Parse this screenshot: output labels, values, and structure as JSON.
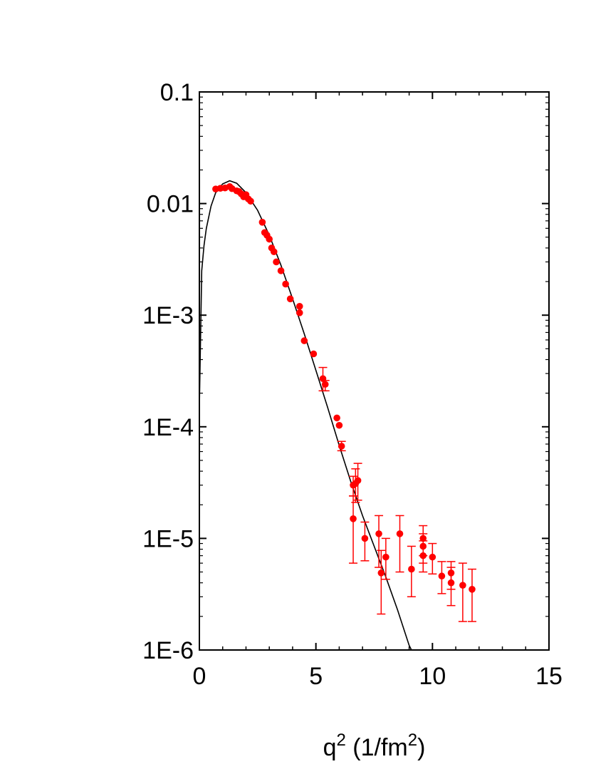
{
  "chart_data": {
    "type": "scatter",
    "title": "",
    "xlabel": {
      "base": "q",
      "sup": "2",
      "unit_open": " (1/fm",
      "unit_sup": "2",
      "unit_close": ")"
    },
    "ylabel": "",
    "xlim": [
      0,
      15
    ],
    "ylim": [
      1e-06,
      0.1
    ],
    "yscale": "log",
    "grid": false,
    "legend": "none",
    "x_ticks": [
      {
        "value": 0,
        "label": "0"
      },
      {
        "value": 5,
        "label": "5"
      },
      {
        "value": 10,
        "label": "10"
      },
      {
        "value": 15,
        "label": "15"
      }
    ],
    "y_ticks": [
      {
        "value": 1e-06,
        "label": "1E-6"
      },
      {
        "value": 1e-05,
        "label": "1E-5"
      },
      {
        "value": 0.0001,
        "label": "1E-4"
      },
      {
        "value": 0.001,
        "label": "1E-3"
      },
      {
        "value": 0.01,
        "label": "0.01"
      },
      {
        "value": 0.1,
        "label": "0.1"
      }
    ],
    "colors": {
      "data": "#ff0000",
      "curve": "#000000",
      "axis": "#000000"
    },
    "series": [
      {
        "kind": "points",
        "points": [
          {
            "x": 0.7,
            "y": 0.0135
          },
          {
            "x": 0.9,
            "y": 0.0137
          },
          {
            "x": 1.1,
            "y": 0.0138
          },
          {
            "x": 1.3,
            "y": 0.0142
          },
          {
            "x": 1.4,
            "y": 0.0136
          },
          {
            "x": 1.6,
            "y": 0.013
          },
          {
            "x": 1.7,
            "y": 0.0128
          },
          {
            "x": 1.8,
            "y": 0.0122
          },
          {
            "x": 1.9,
            "y": 0.0115
          },
          {
            "x": 2.0,
            "y": 0.012
          },
          {
            "x": 2.1,
            "y": 0.011
          },
          {
            "x": 2.2,
            "y": 0.0105
          },
          {
            "x": 2.7,
            "y": 0.0068
          },
          {
            "x": 2.8,
            "y": 0.0055
          },
          {
            "x": 2.9,
            "y": 0.0052
          },
          {
            "x": 3.0,
            "y": 0.0048
          },
          {
            "x": 3.1,
            "y": 0.004
          },
          {
            "x": 3.2,
            "y": 0.0037
          },
          {
            "x": 3.3,
            "y": 0.003
          },
          {
            "x": 3.5,
            "y": 0.0025
          },
          {
            "x": 3.7,
            "y": 0.0019
          },
          {
            "x": 3.9,
            "y": 0.0014
          },
          {
            "x": 4.3,
            "y": 0.0012
          },
          {
            "x": 4.3,
            "y": 0.00105
          },
          {
            "x": 4.5,
            "y": 0.00059
          },
          {
            "x": 4.9,
            "y": 0.00045
          },
          {
            "x": 5.3,
            "y": 0.00027,
            "err_lo": 0.00021,
            "err_hi": 0.00034
          },
          {
            "x": 5.4,
            "y": 0.00024,
            "err_lo": 0.00021,
            "err_hi": 0.00026
          },
          {
            "x": 5.9,
            "y": 0.00012
          },
          {
            "x": 6.0,
            "y": 0.000103
          },
          {
            "x": 6.1,
            "y": 6.7e-05,
            "err_lo": 6.1e-05,
            "err_hi": 7.4e-05
          },
          {
            "x": 6.6,
            "y": 3e-05,
            "err_lo": 2.4e-05,
            "err_hi": 3.6e-05
          },
          {
            "x": 6.7,
            "y": 3.1e-05,
            "err_lo": 2.1e-05,
            "err_hi": 4.2e-05
          },
          {
            "x": 6.8,
            "y": 3.3e-05,
            "err_lo": 2.2e-05,
            "err_hi": 4.7e-05
          },
          {
            "x": 6.6,
            "y": 1.5e-05,
            "err_lo": 6e-06,
            "err_hi": 2.4e-05
          },
          {
            "x": 7.1,
            "y": 1e-05,
            "err_lo": 6.3e-06,
            "err_hi": 1.4e-05
          },
          {
            "x": 7.7,
            "y": 1.1e-05,
            "err_lo": 5.5e-06,
            "err_hi": 1.6e-05
          },
          {
            "x": 7.8,
            "y": 4.9e-06,
            "err_lo": 2.1e-06,
            "err_hi": 7.8e-06
          },
          {
            "x": 8.0,
            "y": 6.8e-06,
            "err_lo": 4.3e-06,
            "err_hi": 1e-05
          },
          {
            "x": 8.6,
            "y": 1.1e-05,
            "err_lo": 5e-06,
            "err_hi": 1.6e-05
          },
          {
            "x": 9.1,
            "y": 5.3e-06,
            "err_lo": 3e-06,
            "err_hi": 8.5e-06
          },
          {
            "x": 9.6,
            "y": 1e-05,
            "err_lo": 7e-06,
            "err_hi": 1.3e-05
          },
          {
            "x": 9.6,
            "y": 8.5e-06,
            "err_lo": 6e-06,
            "err_hi": 1.1e-05
          },
          {
            "x": 9.6,
            "y": 7e-06,
            "err_lo": 5e-06,
            "err_hi": 9.5e-06
          },
          {
            "x": 10.0,
            "y": 6.8e-06,
            "err_lo": 4.8e-06,
            "err_hi": 9e-06
          },
          {
            "x": 10.4,
            "y": 4.6e-06,
            "err_lo": 3.2e-06,
            "err_hi": 6.2e-06
          },
          {
            "x": 10.8,
            "y": 4.9e-06,
            "err_lo": 3.5e-06,
            "err_hi": 6.2e-06
          },
          {
            "x": 10.8,
            "y": 4e-06,
            "err_lo": 2.5e-06,
            "err_hi": 5.5e-06
          },
          {
            "x": 11.3,
            "y": 3.8e-06,
            "err_lo": 1.8e-06,
            "err_hi": 6e-06
          },
          {
            "x": 11.7,
            "y": 3.5e-06,
            "err_lo": 1.8e-06,
            "err_hi": 5.3e-06
          }
        ]
      },
      {
        "kind": "curve",
        "points": [
          {
            "x": 0.0,
            "y": 0.00015
          },
          {
            "x": 0.1,
            "y": 0.0025
          },
          {
            "x": 0.2,
            "y": 0.0042
          },
          {
            "x": 0.3,
            "y": 0.006
          },
          {
            "x": 0.5,
            "y": 0.0095
          },
          {
            "x": 0.7,
            "y": 0.0125
          },
          {
            "x": 1.0,
            "y": 0.015
          },
          {
            "x": 1.3,
            "y": 0.016
          },
          {
            "x": 1.6,
            "y": 0.0152
          },
          {
            "x": 2.0,
            "y": 0.0125
          },
          {
            "x": 2.5,
            "y": 0.0087
          },
          {
            "x": 3.0,
            "y": 0.0052
          },
          {
            "x": 3.5,
            "y": 0.0028
          },
          {
            "x": 4.0,
            "y": 0.0014
          },
          {
            "x": 4.5,
            "y": 0.00068
          },
          {
            "x": 5.0,
            "y": 0.00032
          },
          {
            "x": 5.5,
            "y": 0.00015
          },
          {
            "x": 6.0,
            "y": 6.8e-05
          },
          {
            "x": 6.5,
            "y": 3.2e-05
          },
          {
            "x": 7.0,
            "y": 1.6e-05
          },
          {
            "x": 7.5,
            "y": 8.5e-06
          },
          {
            "x": 8.0,
            "y": 4.5e-06
          },
          {
            "x": 8.5,
            "y": 2.3e-06
          },
          {
            "x": 9.0,
            "y": 1.1e-06
          },
          {
            "x": 9.1,
            "y": 1e-06
          }
        ]
      }
    ]
  }
}
